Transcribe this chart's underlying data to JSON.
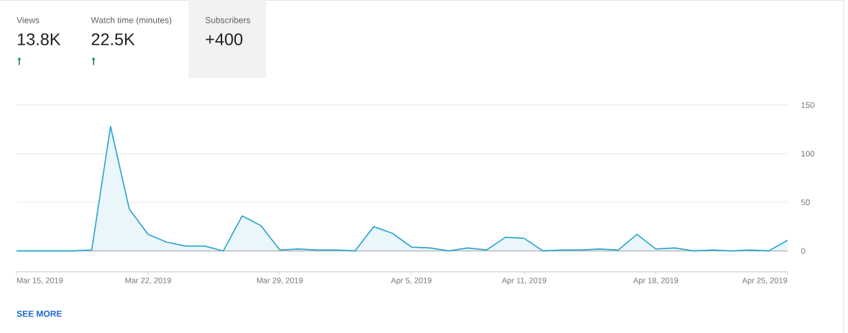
{
  "chart_data": [
    {
      "type": "other",
      "annotations": [
        "Views",
        "13.8K",
        "Watch time (minutes)",
        "22.5K",
        "Subscribers",
        "+400"
      ]
    },
    {
      "type": "area",
      "color": "#2aa3cf",
      "x": [
        "2019-03-15",
        "2019-03-16",
        "2019-03-17",
        "2019-03-18",
        "2019-03-19",
        "2019-03-20",
        "2019-03-21",
        "2019-03-22",
        "2019-03-23",
        "2019-03-24",
        "2019-03-25",
        "2019-03-26",
        "2019-03-27",
        "2019-03-28",
        "2019-03-29",
        "2019-03-30",
        "2019-03-31",
        "2019-04-01",
        "2019-04-02",
        "2019-04-03",
        "2019-04-04",
        "2019-04-05",
        "2019-04-06",
        "2019-04-07",
        "2019-04-08",
        "2019-04-09",
        "2019-04-10",
        "2019-04-11",
        "2019-04-12",
        "2019-04-13",
        "2019-04-14",
        "2019-04-15",
        "2019-04-16",
        "2019-04-17",
        "2019-04-18",
        "2019-04-19",
        "2019-04-20",
        "2019-04-21",
        "2019-04-22",
        "2019-04-23",
        "2019-04-24",
        "2019-04-25"
      ],
      "values": [
        0,
        0,
        0,
        0,
        1,
        128,
        43,
        17,
        9,
        5,
        5,
        0,
        36,
        26,
        1,
        2,
        1,
        1,
        0,
        25,
        18,
        4,
        3,
        0,
        3,
        1,
        14,
        13,
        0,
        1,
        1,
        2,
        1,
        17,
        2,
        3,
        0,
        1,
        0,
        1,
        0,
        11
      ],
      "xlim": [
        "2019-03-15",
        "2019-04-25"
      ],
      "xticks": [
        {
          "value": "2019-03-15",
          "label": "Mar 15, 2019"
        },
        {
          "value": "2019-03-22",
          "label": "Mar 22, 2019"
        },
        {
          "value": "2019-03-29",
          "label": "Mar 29, 2019"
        },
        {
          "value": "2019-04-05",
          "label": "Apr 5, 2019"
        },
        {
          "value": "2019-04-11",
          "label": "Apr 11, 2019"
        },
        {
          "value": "2019-04-18",
          "label": "Apr 18, 2019"
        },
        {
          "value": "2019-04-25",
          "label": "Apr 25, 2019"
        }
      ],
      "ylim": [
        0,
        150
      ],
      "yticks": [
        0,
        50,
        100,
        150
      ],
      "grid": "y",
      "ref_lines": [
        {
          "axis": "y",
          "value": 0,
          "color": "#9e9e9e"
        }
      ],
      "annotations": [
        "SEE MORE"
      ]
    }
  ]
}
